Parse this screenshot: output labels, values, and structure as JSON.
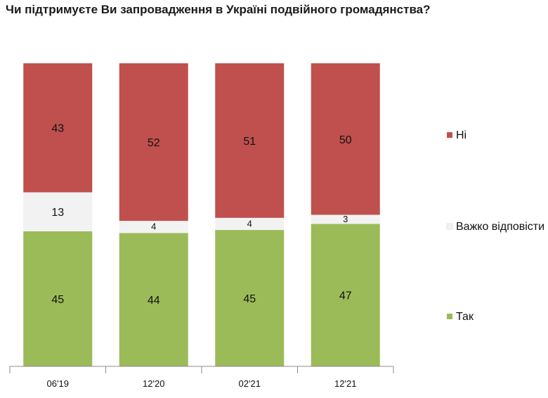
{
  "title": "Чи підтримуєте Ви запровадження в Україні подвійного громадянства?",
  "chart_data": {
    "type": "bar",
    "stacked": true,
    "categories": [
      "06'19",
      "12'20",
      "02'21",
      "12'21"
    ],
    "series": [
      {
        "name": "Так",
        "values": [
          45,
          44,
          45,
          47
        ],
        "color": "#9bbb59"
      },
      {
        "name": "Важко відповісти",
        "values": [
          13,
          4,
          4,
          3
        ],
        "color": "#f2f2f2"
      },
      {
        "name": "Ні",
        "values": [
          43,
          52,
          51,
          50
        ],
        "color": "#c0504d"
      }
    ],
    "legend": [
      "Ні",
      "Важко відповісти",
      "Так"
    ],
    "legend_position": "right",
    "grid": false
  }
}
